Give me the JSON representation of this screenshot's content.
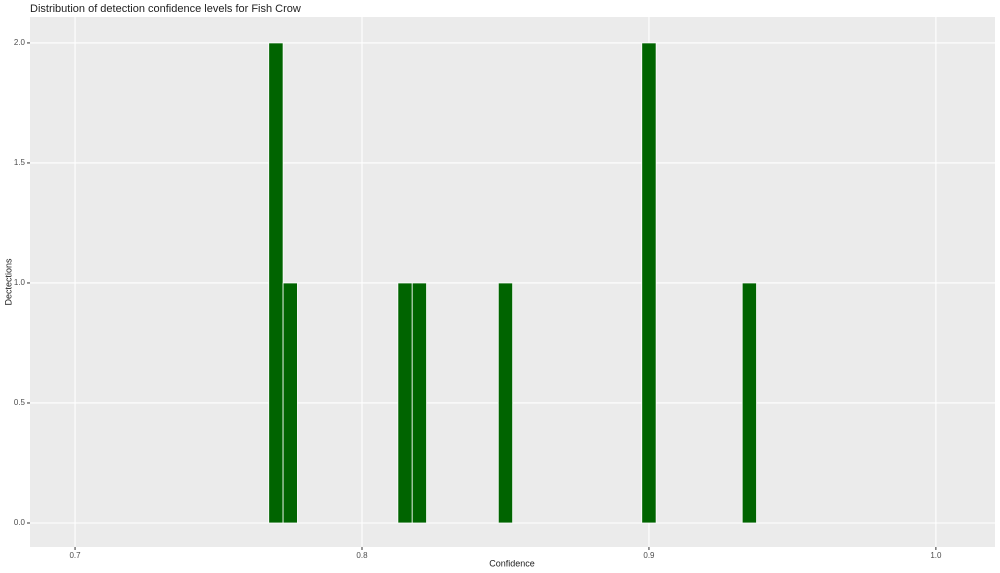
{
  "chart_data": {
    "type": "histogram",
    "title": "Distribution of detection confidence levels for Fish Crow",
    "x_label": "Confidence",
    "y_label": "Dectections",
    "bins": [
      0.7675,
      0.7725,
      0.7775,
      0.7825,
      0.7875,
      0.7925,
      0.7975,
      0.8025,
      0.8075,
      0.8125,
      0.8175,
      0.8225,
      0.8275,
      0.8325,
      0.8375,
      0.8425,
      0.8475,
      0.8525,
      0.8575,
      0.8625,
      0.8675,
      0.8725,
      0.8775,
      0.8825,
      0.8875,
      0.8925,
      0.8975,
      0.9025,
      0.9075,
      0.9125,
      0.9175,
      0.9225,
      0.9275,
      0.9325,
      0.9375
    ],
    "values": [
      2,
      1,
      0,
      0,
      0,
      0,
      0,
      0,
      0,
      1,
      1,
      0,
      0,
      0,
      0,
      0,
      1,
      0,
      0,
      0,
      0,
      0,
      0,
      0,
      0,
      0,
      2,
      0,
      0,
      0,
      0,
      0,
      0,
      1
    ],
    "color": "#006400",
    "xlim": [
      0.6843,
      1.0206
    ],
    "xticks": [
      0.7,
      0.8,
      0.9,
      {
        "value": 1.0,
        "label": "1.0"
      }
    ],
    "ylim": [
      -0.1,
      2.108
    ],
    "yticks": [
      {
        "value": 0,
        "label": "0.0"
      },
      0.5,
      {
        "value": 1.0,
        "label": "1.0"
      },
      1.5,
      {
        "value": 2.0,
        "label": "2.0"
      }
    ],
    "grid": true
  }
}
